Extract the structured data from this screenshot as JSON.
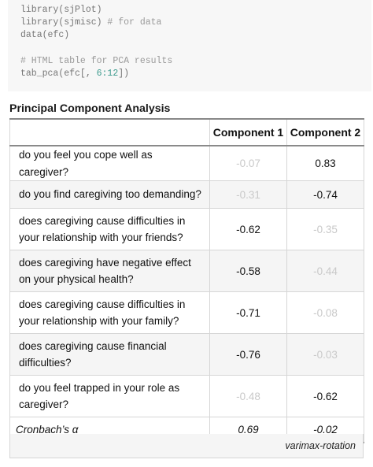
{
  "code": {
    "lines": [
      {
        "fn": "library",
        "args": "(sjPlot)",
        "comment": ""
      },
      {
        "fn": "library",
        "args": "(sjmisc)",
        "comment": " # for data"
      },
      {
        "fn": "data",
        "args": "(efc)",
        "comment": ""
      },
      {
        "fn": "",
        "args": "",
        "comment": ""
      },
      {
        "fn": "",
        "args": "",
        "comment": "# HTML table for PCA results"
      },
      {
        "fn": "tab_pca",
        "args_before": "(efc[, ",
        "number": "6:12",
        "args_after": "])"
      }
    ]
  },
  "table": {
    "caption": "Principal Component Analysis",
    "headers": [
      "",
      "Component 1",
      "Component 2"
    ],
    "rows": [
      {
        "label": "do you feel you cope well as caregiver?",
        "c1": "-0.07",
        "c2": "0.83"
      },
      {
        "label": "do you find caregiving too demanding?",
        "c1": "-0.31",
        "c2": "-0.74"
      },
      {
        "label": "does caregiving cause difficulties in your relationship with your friends?",
        "c1": "-0.62",
        "c2": "-0.35"
      },
      {
        "label": "does caregiving have negative effect on your physical health?",
        "c1": "-0.58",
        "c2": "-0.44"
      },
      {
        "label": "does caregiving cause difficulties in your relationship with your family?",
        "c1": "-0.71",
        "c2": "-0.08"
      },
      {
        "label": "does caregiving cause financial difficulties?",
        "c1": "-0.76",
        "c2": "-0.03"
      },
      {
        "label": "do you feel trapped in your role as caregiver?",
        "c1": "-0.48",
        "c2": "-0.62"
      }
    ],
    "cronbach": {
      "label": "Cronbach’s α",
      "c1": "0.69",
      "c2": "-0.02"
    },
    "footnote": "varimax-rotation"
  },
  "colors": {
    "code_background": "#f7f7f7",
    "number_token": "#3f9c8f",
    "muted_loading": "#c9c9c9",
    "alt_row": "#f5f5f5",
    "rule": "#8a8a8a"
  }
}
